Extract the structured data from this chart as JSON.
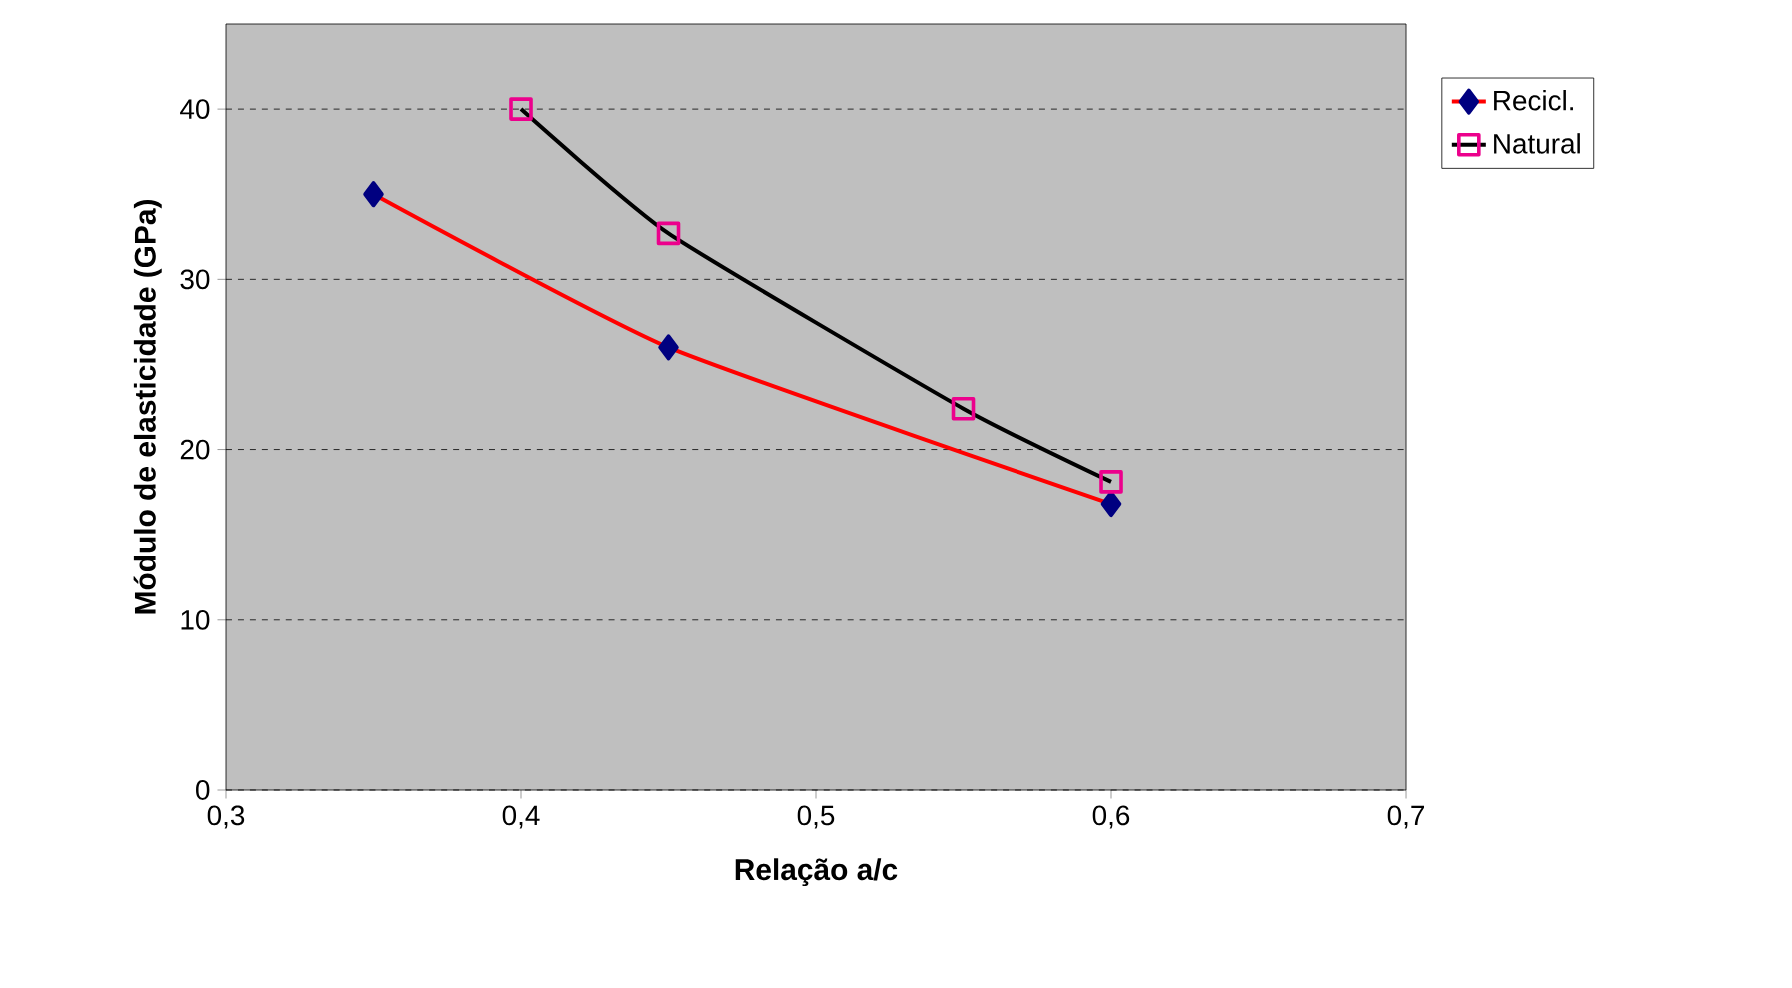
{
  "chart_data": {
    "type": "line",
    "xlabel": "Relação a/c",
    "ylabel": "Módulo de elasticidade (GPa)",
    "xlim": [
      0.3,
      0.7
    ],
    "ylim": [
      0,
      45
    ],
    "xticks": [
      {
        "value": 0.3,
        "label": "0,3"
      },
      {
        "value": 0.4,
        "label": "0,4"
      },
      {
        "value": 0.5,
        "label": "0,5"
      },
      {
        "value": 0.6,
        "label": "0,6"
      },
      {
        "value": 0.7,
        "label": "0,7"
      }
    ],
    "yticks": [
      0,
      10,
      20,
      30,
      40
    ],
    "grid": "y",
    "legend": "right",
    "series": [
      {
        "name": "Recicl.",
        "color": "#ff0000",
        "marker": "diamond",
        "x": [
          0.35,
          0.45,
          0.6
        ],
        "values": [
          35,
          26,
          16.8
        ]
      },
      {
        "name": "Natural",
        "color": "#000000",
        "marker": "square",
        "x": [
          0.4,
          0.45,
          0.55,
          0.6
        ],
        "values": [
          40,
          32.7,
          22.4,
          18.1
        ]
      }
    ]
  }
}
